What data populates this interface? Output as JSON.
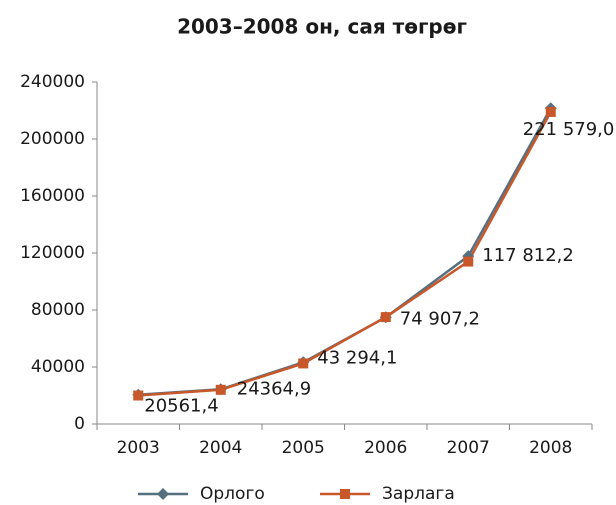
{
  "chart_data": {
    "type": "line",
    "title": "2003–2008 он, сая төгрөг",
    "categories": [
      "2003",
      "2004",
      "2005",
      "2006",
      "2007",
      "2008"
    ],
    "series": [
      {
        "name": "Орлого",
        "color": "#56707f",
        "marker": "diamond",
        "values": [
          20561.4,
          24364.9,
          43294.1,
          74907.2,
          117812.2,
          221579.0
        ],
        "value_labels": [
          "20561,4",
          "24364,9",
          "43 294,1",
          "74 907,2",
          "117 812,2",
          "221 579,0"
        ]
      },
      {
        "name": "Зарлага",
        "color": "#c8582a",
        "marker": "square",
        "values": [
          20000,
          24000,
          42500,
          75000,
          114000,
          219000
        ]
      }
    ],
    "ylim": [
      0,
      240000
    ],
    "yticks": [
      0,
      40000,
      80000,
      120000,
      160000,
      200000,
      240000
    ],
    "grid": false,
    "legend": "bottom"
  }
}
